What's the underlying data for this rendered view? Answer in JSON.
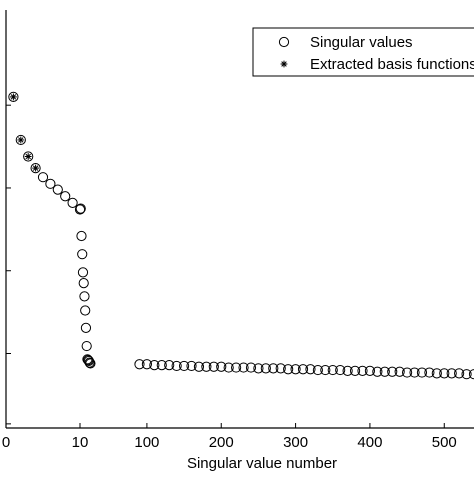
{
  "chart_data": {
    "type": "scatter",
    "title": "",
    "xlabel": "Singular value number",
    "ylabel": "",
    "xlim": [
      0,
      540
    ],
    "ylim": [
      -0.9,
      4.15
    ],
    "y_scale": "log",
    "grid": false,
    "legend_position": "top-right",
    "x_ticks": [
      "0",
      "10",
      "100",
      "200",
      "300",
      "400",
      "500"
    ],
    "x_tick_values": [
      0,
      10,
      100,
      200,
      300,
      400,
      500
    ],
    "series": [
      {
        "name": "Singular values",
        "marker": "circle",
        "x": [
          1,
          2,
          3,
          4,
          5,
          6,
          7,
          8,
          9,
          10,
          11,
          12,
          13,
          14,
          15,
          16,
          17,
          18,
          19,
          20,
          21,
          22,
          23,
          24,
          90,
          100,
          110,
          120,
          130,
          140,
          150,
          160,
          170,
          180,
          190,
          200,
          210,
          220,
          230,
          240,
          250,
          260,
          270,
          280,
          290,
          300,
          310,
          320,
          330,
          340,
          350,
          360,
          370,
          380,
          390,
          400,
          410,
          420,
          430,
          440,
          450,
          460,
          470,
          480,
          490,
          500,
          510,
          520,
          530,
          540
        ],
        "y": [
          3.1,
          2.58,
          2.38,
          2.24,
          2.13,
          2.05,
          1.98,
          1.9,
          1.82,
          1.74,
          1.75,
          1.42,
          1.2,
          0.98,
          0.85,
          0.69,
          0.52,
          0.31,
          0.09,
          -0.07,
          -0.08,
          -0.09,
          -0.11,
          -0.12,
          -0.13,
          -0.13,
          -0.14,
          -0.14,
          -0.14,
          -0.15,
          -0.15,
          -0.15,
          -0.16,
          -0.16,
          -0.16,
          -0.16,
          -0.17,
          -0.17,
          -0.17,
          -0.17,
          -0.18,
          -0.18,
          -0.18,
          -0.18,
          -0.19,
          -0.19,
          -0.19,
          -0.19,
          -0.2,
          -0.2,
          -0.2,
          -0.2,
          -0.21,
          -0.21,
          -0.21,
          -0.21,
          -0.22,
          -0.22,
          -0.22,
          -0.22,
          -0.23,
          -0.23,
          -0.23,
          -0.23,
          -0.24,
          -0.24,
          -0.24,
          -0.24,
          -0.25,
          -0.25
        ]
      },
      {
        "name": "Extracted basis functions",
        "marker": "asterisk",
        "x": [
          1,
          2,
          3,
          4
        ],
        "y": [
          3.1,
          2.58,
          2.38,
          2.24
        ]
      }
    ]
  }
}
